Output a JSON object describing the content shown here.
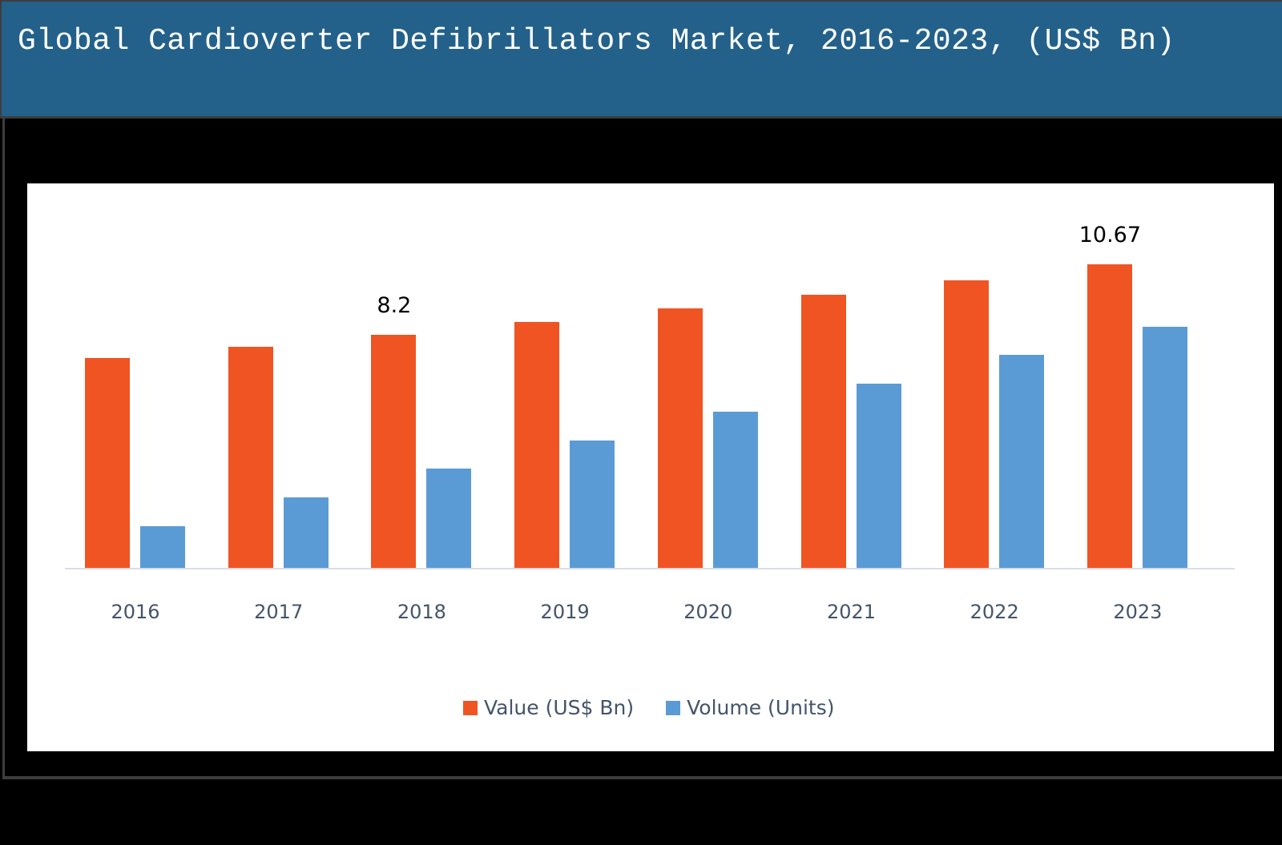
{
  "header": {
    "title": "Global Cardioverter Defibrillators Market, 2016-2023, (US$ Bn)"
  },
  "colors": {
    "title_bar": "#23618b",
    "value_series": "#f05423",
    "volume_series": "#5b9bd5",
    "axis_text": "#44546a",
    "background": "#000000",
    "plot_background": "#ffffff"
  },
  "chart_data": {
    "type": "bar",
    "title": "Global Cardioverter Defibrillators Market, 2016-2023, (US$ Bn)",
    "xlabel": "",
    "ylabel": "",
    "categories": [
      "2016",
      "2017",
      "2018",
      "2019",
      "2020",
      "2021",
      "2022",
      "2023"
    ],
    "series": [
      {
        "name": "Value (US$ Bn)",
        "color": "#f05423",
        "values": [
          7.38,
          7.78,
          8.2,
          8.65,
          9.13,
          9.61,
          10.12,
          10.67
        ]
      },
      {
        "name": "Volume (Units)",
        "color": "#5b9bd5",
        "values": [
          1.47,
          2.48,
          3.49,
          4.48,
          5.49,
          6.48,
          7.5,
          8.48
        ],
        "note": "relative heights on same pixel scale; units not labeled"
      }
    ],
    "annotations": [
      {
        "category": "2018",
        "series": "Value (US$ Bn)",
        "text": "8.2"
      },
      {
        "category": "2023",
        "series": "Value (US$ Bn)",
        "text": "10.67"
      }
    ],
    "ylim": [
      0,
      13
    ],
    "grid": false,
    "y_axis_visible": false,
    "legend_position": "bottom"
  },
  "legend": {
    "items": [
      {
        "label": "Value (US$ Bn)",
        "color": "#f05423"
      },
      {
        "label": "Volume (Units)",
        "color": "#5b9bd5"
      }
    ]
  }
}
